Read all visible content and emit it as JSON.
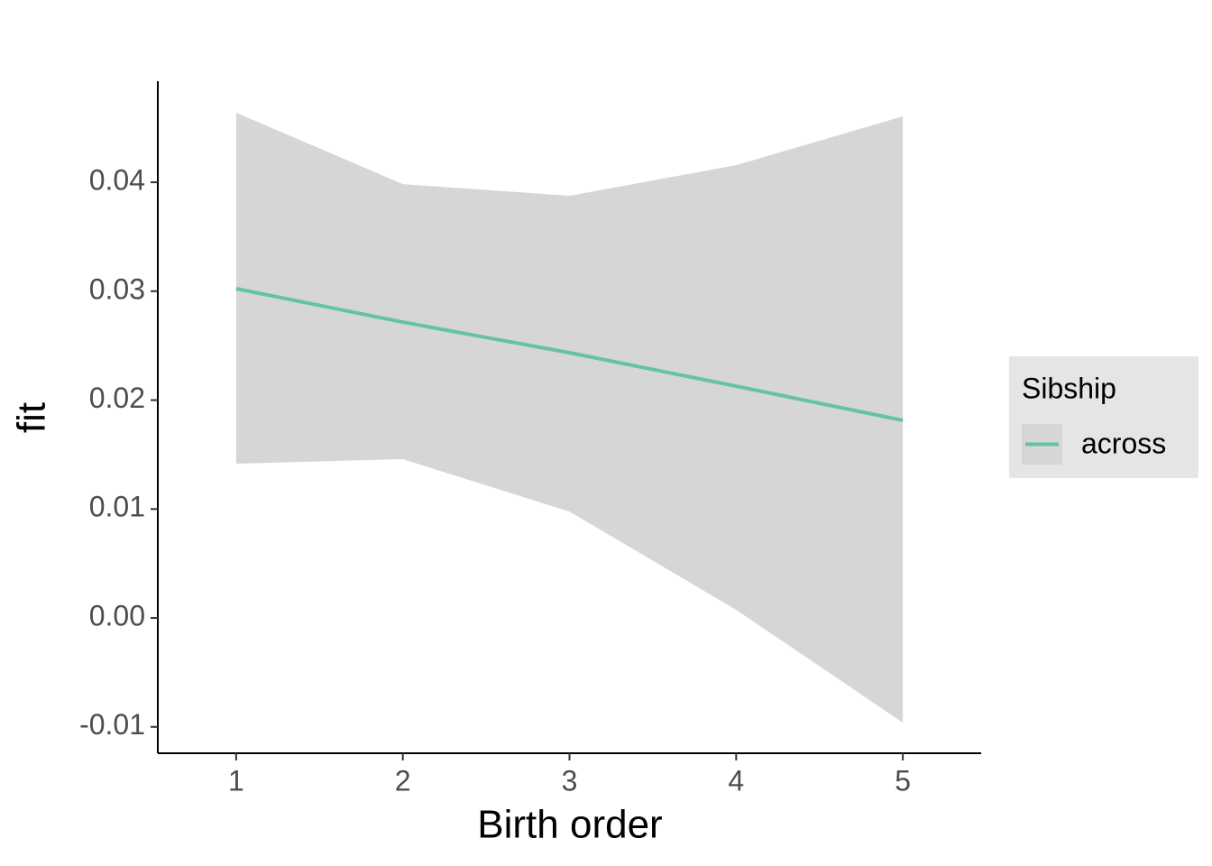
{
  "chart_data": {
    "type": "line",
    "xlabel": "Birth order",
    "ylabel": "fit",
    "x": [
      1,
      2,
      3,
      4,
      5
    ],
    "series": [
      {
        "name": "across",
        "color": "#66c2a5",
        "values": [
          0.03023,
          0.02716,
          0.02435,
          0.02128,
          0.01814
        ],
        "lower": [
          0.01416,
          0.01458,
          0.00977,
          0.00075,
          -0.00961
        ],
        "upper": [
          0.04638,
          0.03983,
          0.03876,
          0.04157,
          0.04605
        ]
      }
    ],
    "band_color": "#d6d6d6",
    "xlim": [
      0.53,
      5.47
    ],
    "xticks": [
      1,
      2,
      3,
      4,
      5
    ],
    "ylim": [
      -0.01242,
      0.04928
    ],
    "yticks": [
      -0.01,
      {
        "value": 0,
        "label": "0.00"
      },
      0.01,
      0.02,
      0.03,
      0.04
    ],
    "legend_title": "Sibship",
    "legend": "right"
  }
}
